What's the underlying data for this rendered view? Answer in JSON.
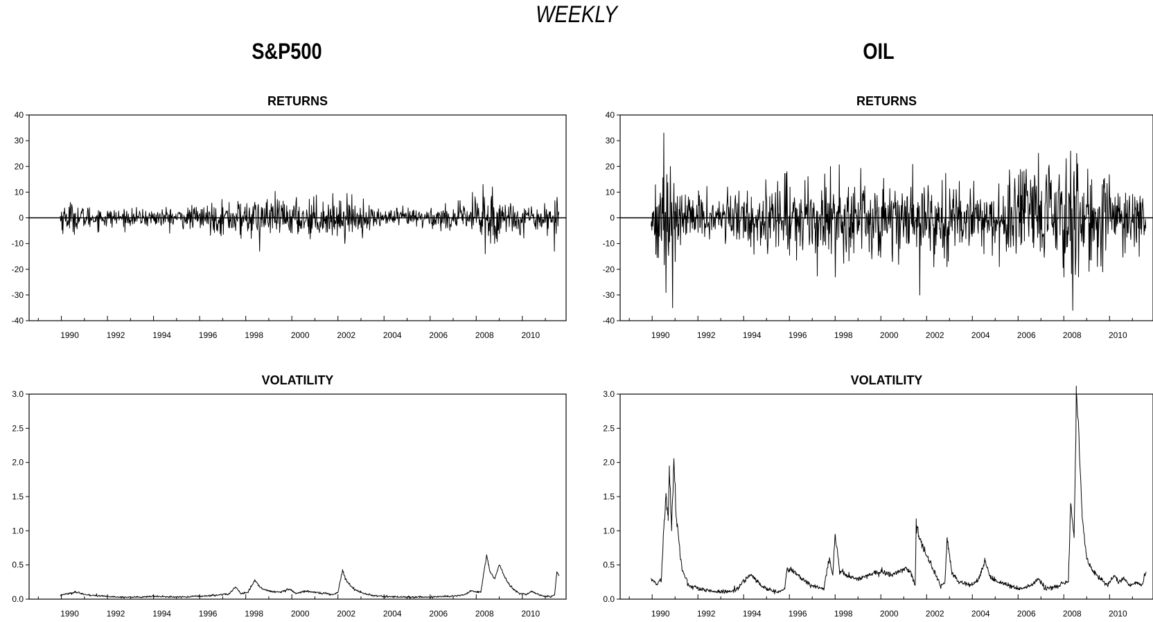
{
  "title": "WEEKLY",
  "columns": [
    {
      "id": "sp",
      "title": "S&P500"
    },
    {
      "id": "oil",
      "title": "OIL"
    }
  ],
  "chart_data": [
    {
      "id": "sp-returns",
      "column": "sp",
      "type": "line",
      "title": "RETURNS",
      "ylim": [
        -40,
        40
      ],
      "yticks": [
        "40",
        "30",
        "20",
        "10",
        "0",
        "-10",
        "-20",
        "-30",
        "-40"
      ],
      "xlim": [
        1988.6,
        2011.9
      ],
      "xticks": [
        "1990",
        "1992",
        "1994",
        "1996",
        "1998",
        "2000",
        "2002",
        "2004",
        "2006",
        "2008",
        "2010"
      ],
      "zero_line": true,
      "grid": false,
      "data_range": [
        1989.95,
        2011.6
      ],
      "regimes": [
        [
          1989.9,
          3.0
        ],
        [
          1991.5,
          2.0
        ],
        [
          1993.0,
          1.5
        ],
        [
          1996.0,
          2.3
        ],
        [
          1997.6,
          3.6
        ],
        [
          1999.0,
          3.4
        ],
        [
          2001.0,
          3.9
        ],
        [
          2003.0,
          2.8
        ],
        [
          2004.0,
          1.6
        ],
        [
          2007.3,
          2.5
        ],
        [
          2008.4,
          5.5
        ],
        [
          2009.5,
          3.2
        ],
        [
          2010.3,
          2.5
        ],
        [
          2011.6,
          3.0
        ]
      ],
      "spikes": [
        [
          1990.4,
          6
        ],
        [
          1997.8,
          -8
        ],
        [
          1998.6,
          -13
        ],
        [
          1998.9,
          6
        ],
        [
          2002.3,
          -10
        ],
        [
          2002.4,
          9.5
        ],
        [
          2008.3,
          13
        ],
        [
          2008.4,
          -14
        ],
        [
          2008.7,
          12
        ],
        [
          2008.8,
          -10
        ],
        [
          2011.4,
          -13
        ],
        [
          2011.5,
          8
        ]
      ]
    },
    {
      "id": "oil-returns",
      "column": "oil",
      "type": "line",
      "title": "RETURNS",
      "ylim": [
        -40,
        40
      ],
      "yticks": [
        "40",
        "30",
        "20",
        "10",
        "0",
        "-10",
        "-20",
        "-30",
        "-40"
      ],
      "xlim": [
        1988.6,
        2011.9
      ],
      "xticks": [
        "1990",
        "1992",
        "1994",
        "1996",
        "1998",
        "2000",
        "2002",
        "2004",
        "2006",
        "2008",
        "2010"
      ],
      "zero_line": true,
      "grid": false,
      "data_range": [
        1989.95,
        2011.6
      ],
      "regimes": [
        [
          1989.9,
          4.0
        ],
        [
          1990.5,
          11.0
        ],
        [
          1991.2,
          5.0
        ],
        [
          1993.5,
          4.5
        ],
        [
          1995.5,
          7.0
        ],
        [
          1998.0,
          7.5
        ],
        [
          2001.5,
          8.5
        ],
        [
          2003.0,
          6.0
        ],
        [
          2005.0,
          6.5
        ],
        [
          2008.2,
          12.0
        ],
        [
          2009.3,
          7.5
        ],
        [
          2011.6,
          6.0
        ]
      ],
      "spikes": [
        [
          1990.5,
          33
        ],
        [
          1990.6,
          -29
        ],
        [
          1990.8,
          20
        ],
        [
          1990.9,
          -35
        ],
        [
          1991.0,
          -17
        ],
        [
          1995.9,
          18
        ],
        [
          1997.8,
          20
        ],
        [
          1998.0,
          -23
        ],
        [
          2001.7,
          -30
        ],
        [
          2002.9,
          -19
        ],
        [
          2004.5,
          -14
        ],
        [
          2008.0,
          -23
        ],
        [
          2008.1,
          23
        ],
        [
          2008.3,
          26
        ],
        [
          2008.4,
          -36
        ],
        [
          2008.6,
          21
        ],
        [
          2011.3,
          -15
        ]
      ]
    },
    {
      "id": "sp-volatility",
      "column": "sp",
      "type": "line",
      "title": "VOLATILITY",
      "ylim": [
        0,
        3
      ],
      "yticks": [
        "3.0",
        "2.5",
        "2.0",
        "1.5",
        "1.0",
        "0.5",
        "0.0"
      ],
      "xlim": [
        1988.6,
        2011.9
      ],
      "xticks": [
        "1990",
        "1992",
        "1994",
        "1996",
        "1998",
        "2000",
        "2002",
        "2004",
        "2006",
        "2008",
        "2010"
      ],
      "zero_line": false,
      "grid": false,
      "noise": 0.012,
      "x": [
        1989.95,
        1990.3,
        1990.6,
        1991.0,
        1991.5,
        1992.5,
        1993.5,
        1994.0,
        1995.0,
        1995.8,
        1996.5,
        1997.3,
        1997.55,
        1997.8,
        1998.1,
        1998.4,
        1998.7,
        1999.0,
        1999.5,
        1999.9,
        2000.2,
        2000.6,
        2001.0,
        2001.5,
        2001.8,
        2002.0,
        2002.2,
        2002.4,
        2002.7,
        2003.0,
        2003.5,
        2004.0,
        2005.0,
        2006.0,
        2006.8,
        2007.4,
        2007.8,
        2008.2,
        2008.45,
        2008.6,
        2008.8,
        2009.0,
        2009.2,
        2009.45,
        2009.6,
        2009.9,
        2010.2,
        2010.4,
        2010.6,
        2010.9,
        2011.2,
        2011.4,
        2011.5,
        2011.6
      ],
      "y": [
        0.06,
        0.08,
        0.1,
        0.07,
        0.05,
        0.03,
        0.03,
        0.04,
        0.03,
        0.04,
        0.05,
        0.08,
        0.18,
        0.08,
        0.1,
        0.28,
        0.15,
        0.12,
        0.1,
        0.15,
        0.08,
        0.12,
        0.1,
        0.08,
        0.07,
        0.1,
        0.42,
        0.25,
        0.15,
        0.1,
        0.05,
        0.04,
        0.03,
        0.03,
        0.04,
        0.06,
        0.12,
        0.1,
        0.65,
        0.4,
        0.3,
        0.5,
        0.35,
        0.2,
        0.15,
        0.08,
        0.07,
        0.12,
        0.08,
        0.05,
        0.03,
        0.06,
        0.4,
        0.35
      ]
    },
    {
      "id": "oil-volatility",
      "column": "oil",
      "type": "line",
      "title": "VOLATILITY",
      "ylim": [
        0,
        3
      ],
      "yticks": [
        "3.0",
        "2.5",
        "2.0",
        "1.5",
        "1.0",
        "0.5",
        "0.0"
      ],
      "xlim": [
        1988.6,
        2011.9
      ],
      "xticks": [
        "1990",
        "1992",
        "1994",
        "1996",
        "1998",
        "2000",
        "2002",
        "2004",
        "2006",
        "2008",
        "2010"
      ],
      "zero_line": false,
      "grid": false,
      "noise": 0.025,
      "x": [
        1989.95,
        1990.2,
        1990.4,
        1990.5,
        1990.6,
        1990.7,
        1990.75,
        1990.85,
        1990.95,
        1991.05,
        1991.3,
        1991.6,
        1992.0,
        1992.5,
        1993.0,
        1993.5,
        1993.8,
        1994.1,
        1994.3,
        1994.6,
        1995.0,
        1995.5,
        1995.8,
        1995.9,
        1996.2,
        1996.5,
        1997.0,
        1997.5,
        1997.75,
        1997.9,
        1998.0,
        1998.2,
        1998.5,
        1999.0,
        1999.5,
        2000.0,
        2000.5,
        2001.0,
        2001.3,
        2001.5,
        2001.55,
        2001.8,
        2002.2,
        2002.6,
        2002.8,
        2002.9,
        2003.1,
        2003.4,
        2004.0,
        2004.3,
        2004.55,
        2004.8,
        2005.2,
        2006.0,
        2006.5,
        2006.9,
        2007.2,
        2007.8,
        2008.2,
        2008.3,
        2008.45,
        2008.55,
        2008.65,
        2008.8,
        2009.0,
        2009.3,
        2009.6,
        2009.9,
        2010.2,
        2010.4,
        2010.6,
        2010.9,
        2011.2,
        2011.4,
        2011.6
      ],
      "y": [
        0.3,
        0.22,
        0.28,
        1.0,
        1.5,
        1.15,
        1.95,
        1.0,
        2.05,
        1.2,
        0.45,
        0.2,
        0.15,
        0.12,
        0.1,
        0.12,
        0.18,
        0.3,
        0.35,
        0.25,
        0.15,
        0.1,
        0.15,
        0.45,
        0.4,
        0.3,
        0.2,
        0.15,
        0.6,
        0.35,
        0.95,
        0.4,
        0.35,
        0.3,
        0.35,
        0.4,
        0.35,
        0.45,
        0.4,
        0.2,
        1.1,
        0.8,
        0.5,
        0.2,
        0.25,
        0.9,
        0.4,
        0.25,
        0.2,
        0.3,
        0.55,
        0.3,
        0.25,
        0.15,
        0.18,
        0.3,
        0.15,
        0.2,
        0.25,
        1.4,
        0.9,
        3.0,
        2.5,
        1.2,
        0.6,
        0.4,
        0.3,
        0.2,
        0.35,
        0.25,
        0.3,
        0.2,
        0.25,
        0.2,
        0.4
      ]
    }
  ]
}
